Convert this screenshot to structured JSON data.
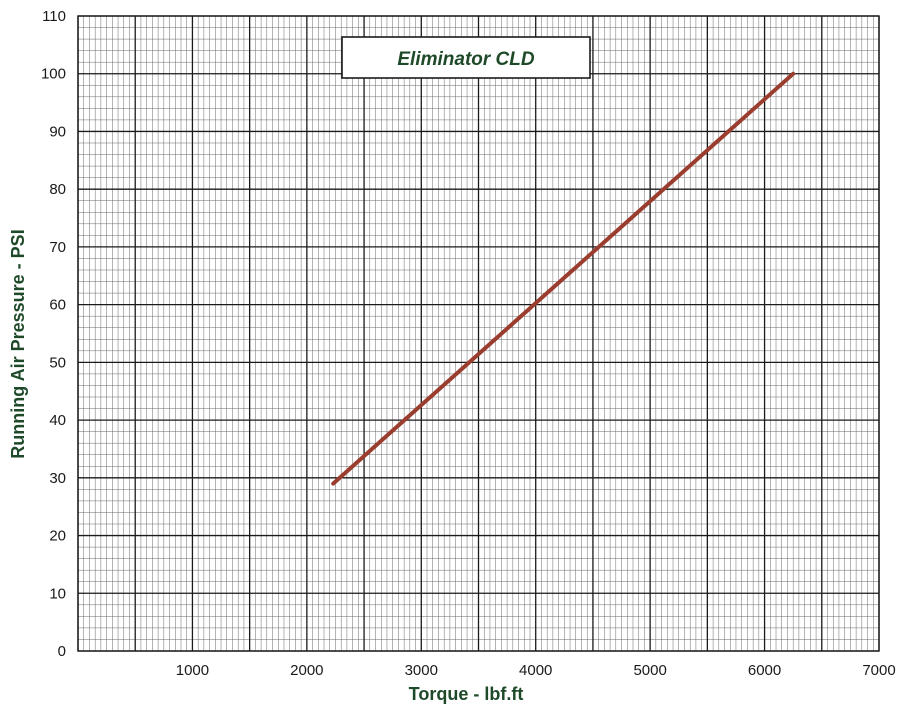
{
  "chart_data": {
    "type": "line",
    "title": "Eliminator CLD",
    "xlabel": "Torque - lbf.ft",
    "ylabel": "Running Air Pressure - PSI",
    "xlim": [
      0,
      7000
    ],
    "ylim": [
      0,
      110
    ],
    "x_ticks": [
      "1000",
      "2000",
      "3000",
      "4000",
      "5000",
      "6000",
      "7000"
    ],
    "y_ticks": [
      "0",
      "10",
      "20",
      "30",
      "40",
      "50",
      "60",
      "70",
      "80",
      "90",
      "100",
      "110"
    ],
    "minor_divisions_x": 10,
    "minor_divisions_y": 5,
    "grid": true,
    "series": [
      {
        "x": [
          2230,
          6250
        ],
        "y": [
          29,
          100
        ]
      }
    ]
  },
  "colors": {
    "line": "#9a3d2f",
    "title_text": "#1f4a2a",
    "axis_title_text": "#1f4a2a",
    "major_grid": "#1a1a1a",
    "minor_grid": "#6a6a6a"
  }
}
